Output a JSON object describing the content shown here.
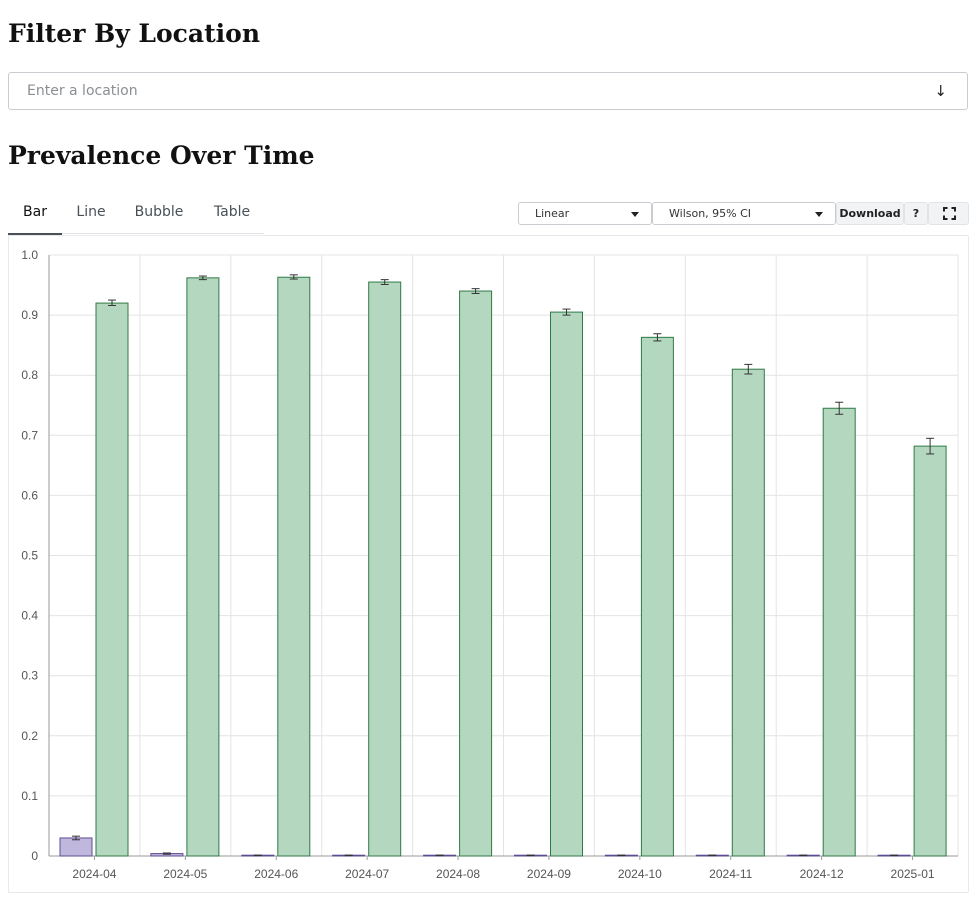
{
  "filter": {
    "heading": "Filter By Location",
    "placeholder": "Enter a location",
    "arrow_glyph": "↓"
  },
  "prevalence": {
    "heading": "Prevalence Over Time",
    "tabs": [
      "Bar",
      "Line",
      "Bubble",
      "Table"
    ],
    "active_tab": "Bar",
    "scale_select": "Linear",
    "ci_select": "Wilson, 95% CI",
    "download_label": "Download",
    "help_label": "?",
    "fullscreen_icon": "fullscreen-icon"
  },
  "colors": {
    "series_a_fill": "#bfb8dc",
    "series_a_stroke": "#5e4c93",
    "series_b_fill": "#b4d7c0",
    "series_b_stroke": "#2f7a44",
    "grid": "#e4e4e4",
    "axis": "#999999"
  },
  "chart_data": {
    "type": "bar",
    "categories": [
      "2024-04",
      "2024-05",
      "2024-06",
      "2024-07",
      "2024-08",
      "2024-09",
      "2024-10",
      "2024-11",
      "2024-12",
      "2025-01"
    ],
    "ylim": [
      0,
      1
    ],
    "yticks": [
      "0",
      "0.1",
      "0.2",
      "0.3",
      "0.4",
      "0.5",
      "0.6",
      "0.7",
      "0.8",
      "0.9",
      "1.0"
    ],
    "grid": true,
    "error_bars": "Wilson, 95% CI",
    "series": [
      {
        "values": [
          0.03,
          0.004,
          0.001,
          0.001,
          0.001,
          0.001,
          0.001,
          0.001,
          0.001,
          0.001
        ],
        "ci_low": [
          0.027,
          0.003,
          0.0005,
          0.0005,
          0.0005,
          0.0005,
          0.0005,
          0.0005,
          0.0005,
          0.0005
        ],
        "ci_high": [
          0.033,
          0.005,
          0.0015,
          0.0015,
          0.0015,
          0.0015,
          0.0015,
          0.0015,
          0.0015,
          0.0015
        ]
      },
      {
        "values": [
          0.92,
          0.962,
          0.963,
          0.955,
          0.94,
          0.905,
          0.863,
          0.81,
          0.745,
          0.682
        ],
        "ci_low": [
          0.916,
          0.959,
          0.96,
          0.951,
          0.936,
          0.9,
          0.857,
          0.802,
          0.735,
          0.669
        ],
        "ci_high": [
          0.925,
          0.965,
          0.967,
          0.959,
          0.944,
          0.91,
          0.869,
          0.818,
          0.755,
          0.695
        ]
      }
    ]
  }
}
